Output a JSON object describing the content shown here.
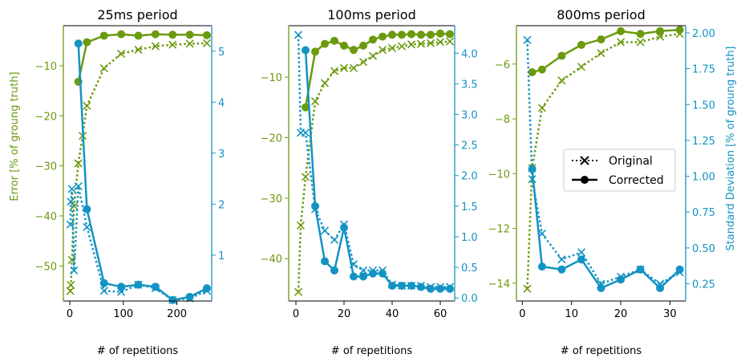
{
  "colors": {
    "error": "#6b9a0e",
    "std": "#1393c3",
    "axis": "#000000"
  },
  "figure": {
    "left_axis_label": "Error [% of groung truth]",
    "right_axis_label": "Standard Deviation [% of groung truth]",
    "x_axis_label": "# of repetitions"
  },
  "legend": {
    "items": [
      {
        "label": "Original",
        "style": "dotted-x"
      },
      {
        "label": "Corrected",
        "style": "solid-dot"
      }
    ]
  },
  "chart_data": [
    {
      "type": "line",
      "title": "25ms period",
      "xlabel": "# of repetitions",
      "ylabel": "Error [% of groung truth]",
      "xlim": [
        -12,
        265
      ],
      "xticks": [
        0,
        100,
        200
      ],
      "ylim_left": [
        -57,
        -2
      ],
      "yticks_left": [
        -50,
        -40,
        -30,
        -20,
        -10
      ],
      "ylim_right": [
        0.1,
        5.5
      ],
      "yticks_right": [
        1,
        2,
        3,
        4,
        5
      ],
      "x": [
        1,
        2,
        4,
        8,
        16,
        32,
        64,
        96,
        128,
        160,
        192,
        224,
        256
      ],
      "series": [
        {
          "name": "Original",
          "metric": "error",
          "x": [
            1,
            2,
            4,
            8,
            16,
            24,
            32,
            64,
            96,
            128,
            160,
            192,
            224,
            256
          ],
          "values": [
            -55,
            -53.8,
            -48.8,
            -38,
            -29.5,
            -24,
            -18,
            -10.5,
            -7.6,
            -6.8,
            -6.1,
            -5.8,
            -5.6,
            -5.5
          ]
        },
        {
          "name": "Corrected",
          "metric": "error",
          "x": [
            16,
            32,
            64,
            96,
            128,
            160,
            192,
            224,
            256
          ],
          "values": [
            -13.2,
            -5.3,
            -4.0,
            -3.7,
            -4.0,
            -3.7,
            -3.8,
            -3.8,
            -3.9
          ]
        },
        {
          "name": "Original",
          "metric": "std",
          "x": [
            1,
            2,
            4,
            8,
            16,
            32,
            64,
            96,
            128,
            160,
            192,
            224,
            256
          ],
          "values": [
            1.6,
            2.05,
            2.3,
            0.7,
            2.35,
            1.55,
            0.3,
            0.28,
            0.42,
            0.35,
            0.12,
            0.15,
            0.3
          ]
        },
        {
          "name": "Corrected",
          "metric": "std",
          "x": [
            16,
            32,
            64,
            96,
            128,
            160,
            192,
            224,
            256
          ],
          "values": [
            5.15,
            1.9,
            0.45,
            0.38,
            0.42,
            0.38,
            0.12,
            0.18,
            0.35
          ]
        }
      ]
    },
    {
      "type": "line",
      "title": "100ms period",
      "xlabel": "# of repetitions",
      "ylabel": "",
      "xlim": [
        -3,
        66
      ],
      "xticks": [
        0,
        20,
        40,
        60
      ],
      "ylim_left": [
        -47,
        -1.5
      ],
      "yticks_left": [
        -40,
        -30,
        -20,
        -10
      ],
      "ylim_right": [
        -0.05,
        4.45
      ],
      "yticks_right": [
        0.0,
        0.5,
        1.0,
        1.5,
        2.0,
        2.5,
        3.0,
        3.5,
        4.0
      ],
      "series": [
        {
          "name": "Original",
          "metric": "error",
          "x": [
            1,
            2,
            4,
            8,
            12,
            16,
            20,
            24,
            28,
            32,
            36,
            40,
            44,
            48,
            52,
            56,
            60,
            64
          ],
          "values": [
            -45.5,
            -34.5,
            -26.5,
            -14,
            -11,
            -9,
            -8.5,
            -8.5,
            -7.5,
            -6.5,
            -5.5,
            -5.2,
            -4.9,
            -4.6,
            -4.5,
            -4.4,
            -4.2,
            -4.1
          ]
        },
        {
          "name": "Corrected",
          "metric": "error",
          "x": [
            4,
            8,
            12,
            16,
            20,
            24,
            28,
            32,
            36,
            40,
            44,
            48,
            52,
            56,
            60,
            64
          ],
          "values": [
            -15,
            -5.8,
            -4.5,
            -4.0,
            -4.8,
            -5.5,
            -4.8,
            -3.8,
            -3.3,
            -3.0,
            -3.0,
            -2.9,
            -3.0,
            -3.0,
            -2.8,
            -2.9
          ]
        },
        {
          "name": "Original",
          "metric": "std",
          "x": [
            1,
            2,
            4,
            8,
            12,
            16,
            20,
            24,
            28,
            32,
            36,
            40,
            44,
            48,
            52,
            56,
            60,
            64
          ],
          "values": [
            4.3,
            2.7,
            2.7,
            1.45,
            1.1,
            0.95,
            1.2,
            0.55,
            0.45,
            0.45,
            0.45,
            0.22,
            0.2,
            0.2,
            0.2,
            0.18,
            0.18,
            0.18
          ]
        },
        {
          "name": "Corrected",
          "metric": "std",
          "x": [
            4,
            8,
            12,
            16,
            20,
            24,
            28,
            32,
            36,
            40,
            44,
            48,
            52,
            56,
            60,
            64
          ],
          "values": [
            4.05,
            1.5,
            0.6,
            0.45,
            1.15,
            0.35,
            0.35,
            0.4,
            0.4,
            0.2,
            0.2,
            0.2,
            0.18,
            0.15,
            0.15,
            0.15
          ]
        }
      ]
    },
    {
      "type": "line",
      "title": "800ms period",
      "xlabel": "# of repetitions",
      "ylabel": "",
      "xlim": [
        -1.2,
        33.2
      ],
      "xticks": [
        0,
        10,
        20,
        30
      ],
      "ylim_left": [
        -14.65,
        -4.6
      ],
      "yticks_left": [
        -14,
        -12,
        -10,
        -8,
        -6
      ],
      "ylim_right": [
        0.13,
        2.05
      ],
      "yticks_right": [
        0.25,
        0.5,
        0.75,
        1.0,
        1.25,
        1.5,
        1.75,
        2.0
      ],
      "series": [
        {
          "name": "Original",
          "metric": "error",
          "x": [
            1,
            2,
            4,
            8,
            12,
            16,
            20,
            24,
            28,
            32
          ],
          "values": [
            -14.2,
            -9.8,
            -7.6,
            -6.6,
            -6.1,
            -5.6,
            -5.2,
            -5.2,
            -5.0,
            -4.9
          ]
        },
        {
          "name": "Corrected",
          "metric": "error",
          "x": [
            2,
            4,
            8,
            12,
            16,
            20,
            24,
            28,
            32
          ],
          "values": [
            -6.3,
            -6.2,
            -5.7,
            -5.3,
            -5.1,
            -4.8,
            -4.9,
            -4.8,
            -4.75
          ]
        },
        {
          "name": "Original",
          "metric": "std",
          "x": [
            1,
            2,
            4,
            8,
            12,
            16,
            20,
            24,
            28,
            32
          ],
          "values": [
            1.95,
            0.98,
            0.6,
            0.42,
            0.47,
            0.25,
            0.3,
            0.35,
            0.25,
            0.33
          ]
        },
        {
          "name": "Corrected",
          "metric": "std",
          "x": [
            2,
            4,
            8,
            12,
            16,
            20,
            24,
            28,
            32
          ],
          "values": [
            1.05,
            0.37,
            0.35,
            0.42,
            0.22,
            0.28,
            0.35,
            0.22,
            0.35
          ]
        }
      ]
    }
  ]
}
